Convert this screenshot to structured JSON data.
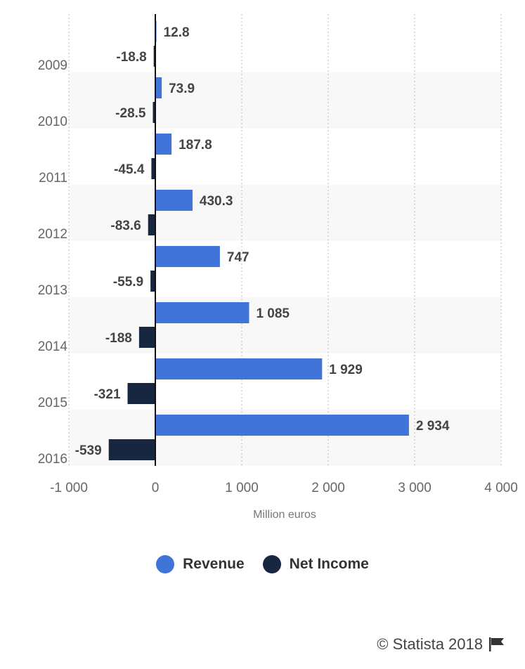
{
  "chart_data": {
    "type": "bar",
    "orientation": "horizontal",
    "categories": [
      "2009",
      "2010",
      "2011",
      "2012",
      "2013",
      "2014",
      "2015",
      "2016"
    ],
    "series": [
      {
        "name": "Revenue",
        "color": "#4074d8",
        "values": [
          12.8,
          73.9,
          187.8,
          430.3,
          747,
          1085,
          1929,
          2934
        ],
        "labels": [
          "12.8",
          "73.9",
          "187.8",
          "430.3",
          "747",
          "1 085",
          "1 929",
          "2 934"
        ]
      },
      {
        "name": "Net Income",
        "color": "#17273f",
        "values": [
          -18.8,
          -28.5,
          -45.4,
          -83.6,
          -55.9,
          -188,
          -321,
          -539
        ],
        "labels": [
          "-18.8",
          "-28.5",
          "-45.4",
          "-83.6",
          "-55.9",
          "-188",
          "-321",
          "-539"
        ]
      }
    ],
    "xlabel": "Million euros",
    "xlim": [
      -1000,
      4000
    ],
    "xticks": [
      -1000,
      0,
      1000,
      2000,
      3000,
      4000
    ],
    "xtick_labels": [
      "-1 000",
      "0",
      "1 000",
      "2 000",
      "3 000",
      "4 000"
    ],
    "grid": true,
    "legend_position": "bottom"
  },
  "credit": "© Statista 2018"
}
